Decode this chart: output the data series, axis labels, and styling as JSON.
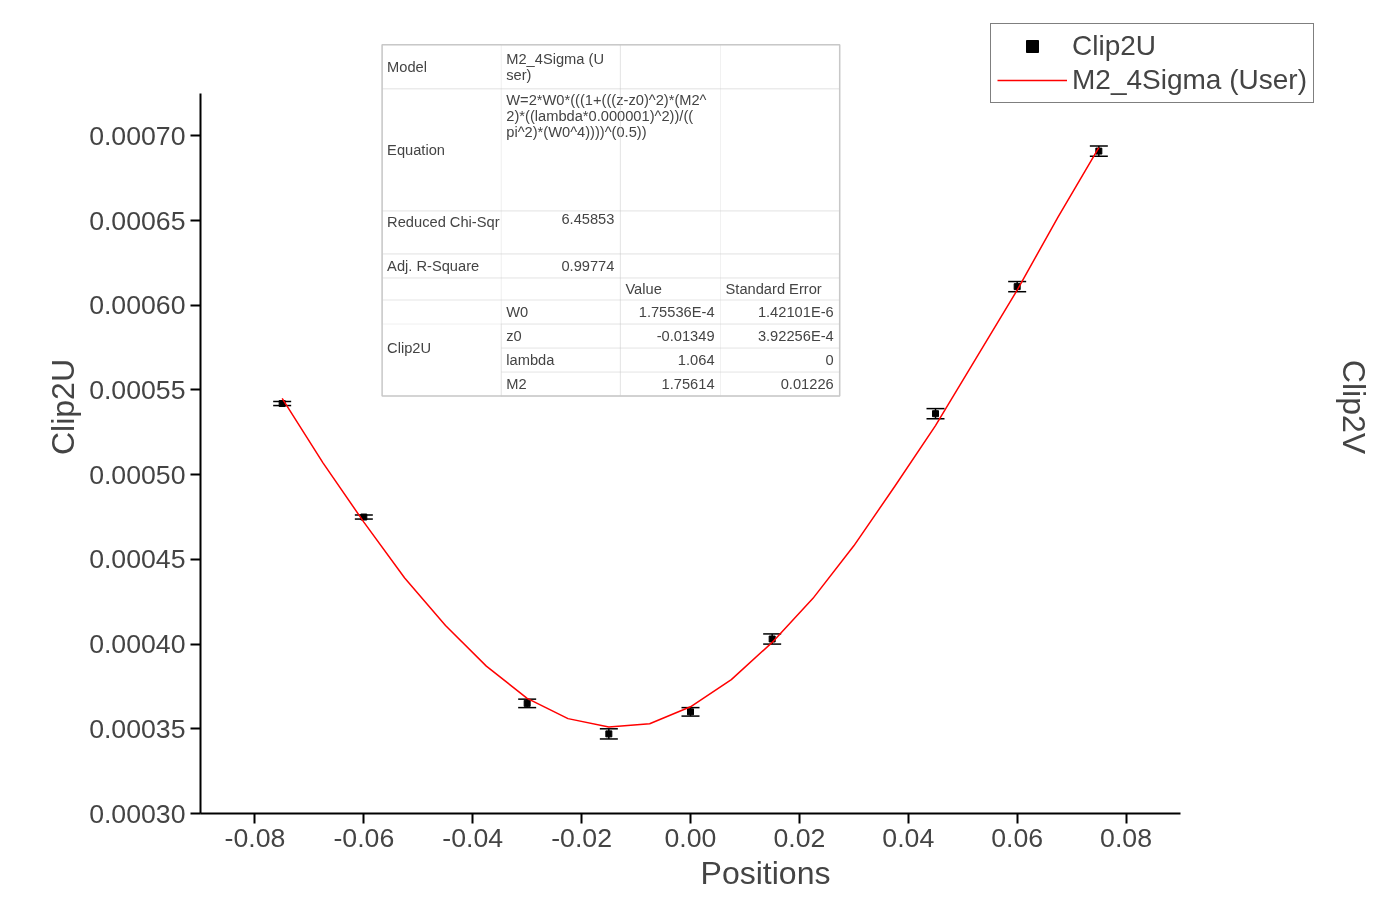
{
  "chart_data": {
    "type": "scatter",
    "xlabel": "Positions",
    "ylabel": "Clip2U",
    "y2label": "Clip2V",
    "xlim": [
      -0.09,
      0.09
    ],
    "ylim": [
      0.0003,
      0.000725
    ],
    "xticks": [
      {
        "value": -0.08,
        "label": "-0.08"
      },
      {
        "value": -0.06,
        "label": "-0.06"
      },
      {
        "value": -0.04,
        "label": "-0.04"
      },
      {
        "value": -0.02,
        "label": "-0.02"
      },
      {
        "value": 0,
        "label": "0.00"
      },
      {
        "value": 0.02,
        "label": "0.02"
      },
      {
        "value": 0.04,
        "label": "0.04"
      },
      {
        "value": 0.06,
        "label": "0.06"
      },
      {
        "value": 0.08,
        "label": "0.08"
      }
    ],
    "yticks": [
      {
        "value": 0.0003,
        "label": "0.00030"
      },
      {
        "value": 0.00035,
        "label": "0.00035"
      },
      {
        "value": 0.0004,
        "label": "0.00040"
      },
      {
        "value": 0.00045,
        "label": "0.00045"
      },
      {
        "value": 0.0005,
        "label": "0.00050"
      },
      {
        "value": 0.00055,
        "label": "0.00055"
      },
      {
        "value": 0.0006,
        "label": "0.00060"
      },
      {
        "value": 0.00065,
        "label": "0.00065"
      },
      {
        "value": 0.0007,
        "label": "0.00070"
      }
    ],
    "grid": false,
    "legend": "top right",
    "series": [
      {
        "name": "Clip2U",
        "marker": "square",
        "color": "#000000",
        "x": [
          -0.075,
          -0.06,
          -0.03,
          -0.015,
          0,
          0.015,
          0.045,
          0.06,
          0.075
        ],
        "values": [
          0.000542,
          0.000475,
          0.000365,
          0.000347,
          0.00036,
          0.000403,
          0.000536,
          0.000611,
          0.000691
        ],
        "errors": [
          1.2e-06,
          1.2e-06,
          2.5e-06,
          3e-06,
          2.5e-06,
          3e-06,
          3e-06,
          3e-06,
          3e-06
        ]
      },
      {
        "name": "M2_4Sigma (User)",
        "type": "line",
        "color": "#ff0000",
        "line_style": "solid",
        "x": [
          -0.075,
          -0.0675,
          -0.06,
          -0.0525,
          -0.045,
          -0.0375,
          -0.03,
          -0.0225,
          -0.015,
          -0.0075,
          0,
          0.0075,
          0.015,
          0.0225,
          0.03,
          0.0375,
          0.045,
          0.0525,
          0.06,
          0.0675,
          0.075
        ],
        "values": [
          0.000545,
          0.000507,
          0.000472,
          0.000439,
          0.000411,
          0.000387,
          0.000368,
          0.000356,
          0.000351,
          0.000353,
          0.000363,
          0.000379,
          0.000401,
          0.000427,
          0.000458,
          0.000493,
          0.000529,
          0.000569,
          0.000609,
          0.000652,
          0.000693
        ]
      }
    ],
    "annotations": [
      "Model",
      "M2_4Sigma (User)",
      "Equation",
      "W=2*W0*(((1+(((z-z0)^2)*(M2^2)*((lambda*0.000001)^2))/((pi^2)*(W0^4))))^(0.5))",
      "Reduced Chi-Sqr",
      "6.45853",
      "Adj. R-Square",
      "0.99774",
      "Value",
      "Standard Error",
      "Clip2U",
      "W0",
      "1.75536E-4",
      "1.42101E-6",
      "z0",
      "-0.01349",
      "3.92256E-4",
      "lambda",
      "1.064",
      "0",
      "M2",
      "1.75614",
      "0.01226"
    ]
  }
}
